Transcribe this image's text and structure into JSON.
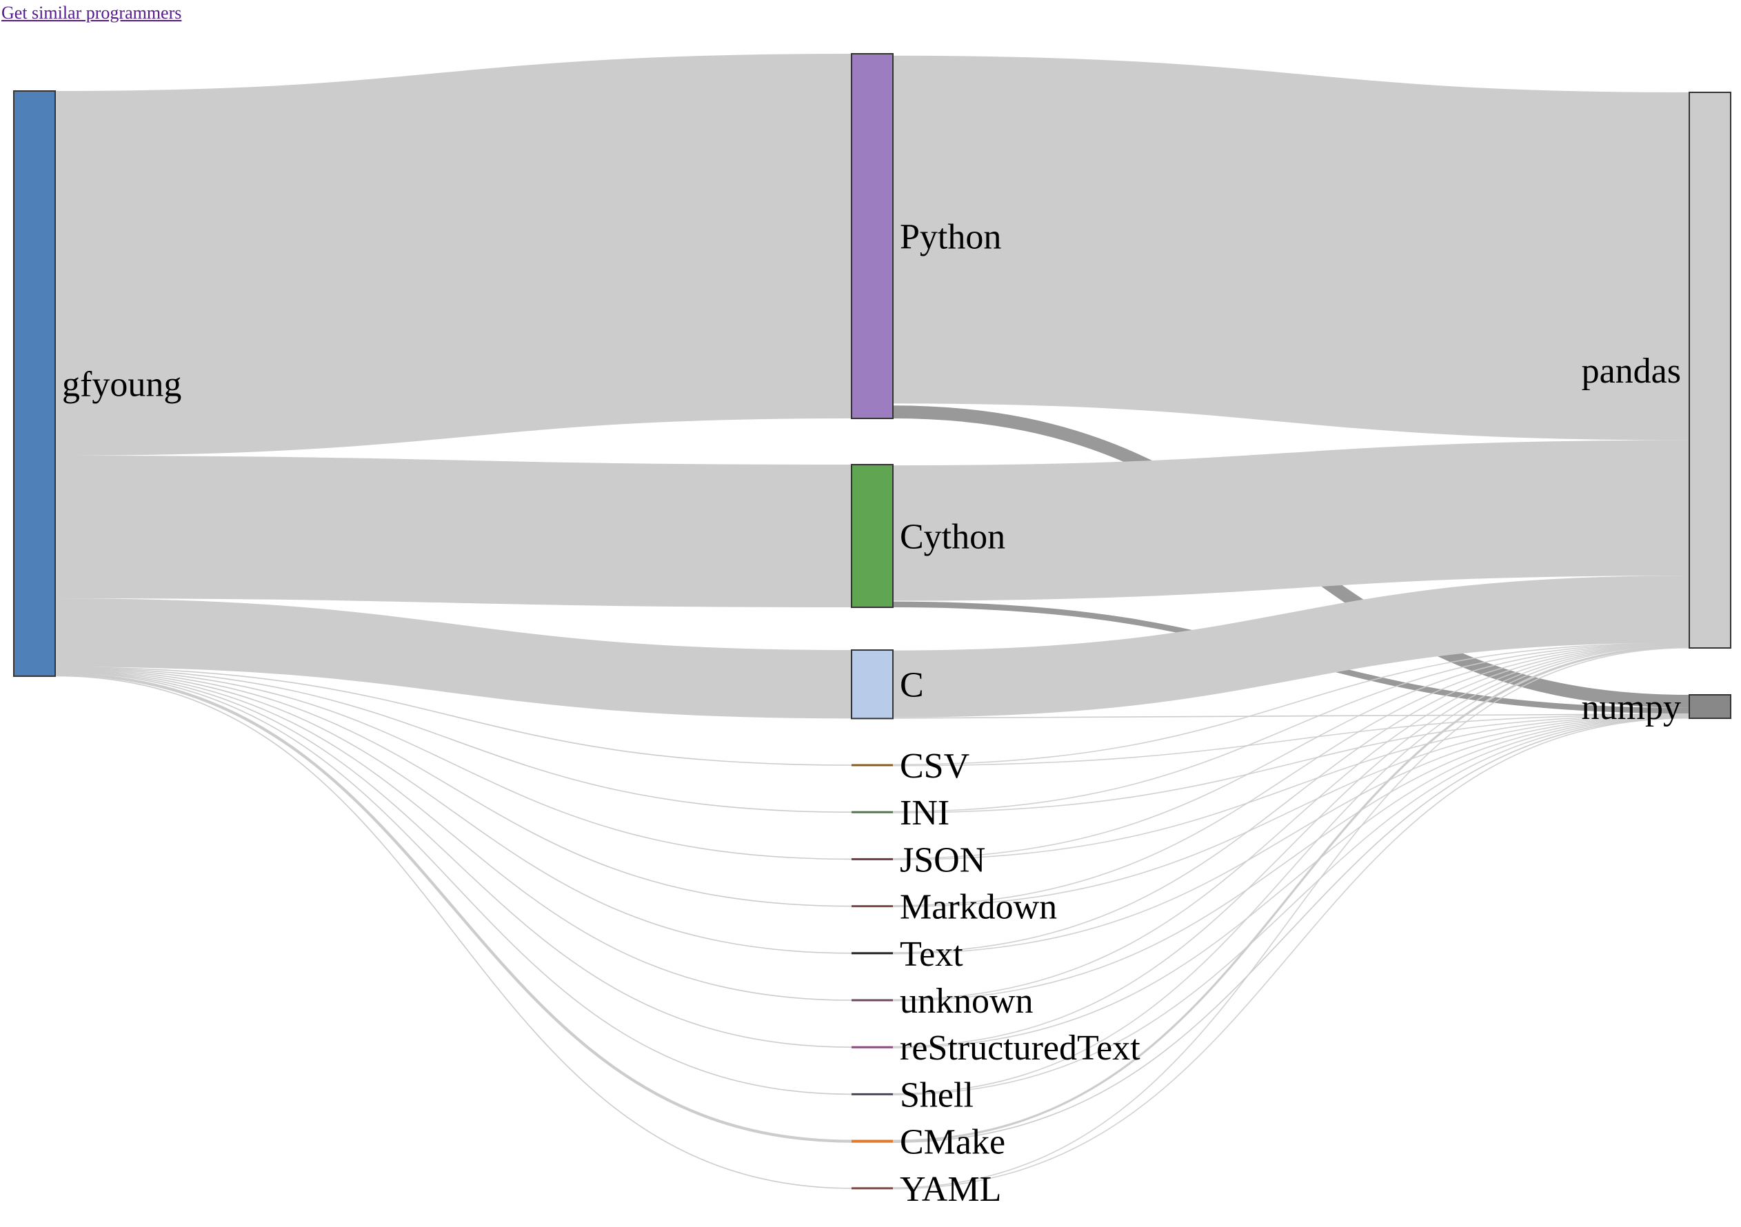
{
  "page": {
    "link_text": "Get similar programmers"
  },
  "sankey": {
    "columns": [
      [
        "gfyoung"
      ],
      [
        "Python",
        "Cython",
        "C",
        "CSV",
        "INI",
        "JSON",
        "Markdown",
        "Text",
        "unknown",
        "reStructuredText",
        "Shell",
        "CMake",
        "YAML"
      ],
      [
        "pandas",
        "numpy"
      ]
    ],
    "nodes": [
      {
        "id": "gfyoung",
        "color": "#4f81b8"
      },
      {
        "id": "Python",
        "color": "#9b7dc0"
      },
      {
        "id": "Cython",
        "color": "#60a552"
      },
      {
        "id": "C",
        "color": "#b8cce9"
      },
      {
        "id": "CSV",
        "color": "#8a5b1e"
      },
      {
        "id": "INI",
        "color": "#4e7a4a"
      },
      {
        "id": "JSON",
        "color": "#6e3a44"
      },
      {
        "id": "Markdown",
        "color": "#7a4a44"
      },
      {
        "id": "Text",
        "color": "#222222"
      },
      {
        "id": "unknown",
        "color": "#6e4a5e"
      },
      {
        "id": "reStructuredText",
        "color": "#8a4a7a"
      },
      {
        "id": "Shell",
        "color": "#4a4a5a"
      },
      {
        "id": "CMake",
        "color": "#e07a2f"
      },
      {
        "id": "YAML",
        "color": "#7a4a44"
      },
      {
        "id": "pandas",
        "color": "#cccccc"
      },
      {
        "id": "numpy",
        "color": "#888888"
      }
    ],
    "links": [
      {
        "source": "gfyoung",
        "target": "Python",
        "value": 506
      },
      {
        "source": "gfyoung",
        "target": "Cython",
        "value": 198
      },
      {
        "source": "gfyoung",
        "target": "C",
        "value": 95
      },
      {
        "source": "gfyoung",
        "target": "CSV",
        "value": 1
      },
      {
        "source": "gfyoung",
        "target": "INI",
        "value": 1
      },
      {
        "source": "gfyoung",
        "target": "JSON",
        "value": 1
      },
      {
        "source": "gfyoung",
        "target": "Markdown",
        "value": 1
      },
      {
        "source": "gfyoung",
        "target": "Text",
        "value": 1
      },
      {
        "source": "gfyoung",
        "target": "unknown",
        "value": 1
      },
      {
        "source": "gfyoung",
        "target": "reStructuredText",
        "value": 1
      },
      {
        "source": "gfyoung",
        "target": "Shell",
        "value": 1
      },
      {
        "source": "gfyoung",
        "target": "CMake",
        "value": 4
      },
      {
        "source": "gfyoung",
        "target": "YAML",
        "value": 1
      },
      {
        "source": "Python",
        "target": "pandas",
        "value": 488
      },
      {
        "source": "Python",
        "target": "numpy",
        "value": 18
      },
      {
        "source": "Cython",
        "target": "pandas",
        "value": 190
      },
      {
        "source": "Cython",
        "target": "numpy",
        "value": 8
      },
      {
        "source": "C",
        "target": "pandas",
        "value": 94
      },
      {
        "source": "C",
        "target": "numpy",
        "value": 1
      },
      {
        "source": "CSV",
        "target": "pandas",
        "value": 0.5
      },
      {
        "source": "CSV",
        "target": "numpy",
        "value": 0.5
      },
      {
        "source": "INI",
        "target": "pandas",
        "value": 0.5
      },
      {
        "source": "INI",
        "target": "numpy",
        "value": 0.5
      },
      {
        "source": "JSON",
        "target": "pandas",
        "value": 0.5
      },
      {
        "source": "JSON",
        "target": "numpy",
        "value": 0.5
      },
      {
        "source": "Markdown",
        "target": "pandas",
        "value": 0.5
      },
      {
        "source": "Markdown",
        "target": "numpy",
        "value": 0.5
      },
      {
        "source": "Text",
        "target": "pandas",
        "value": 0.5
      },
      {
        "source": "Text",
        "target": "numpy",
        "value": 0.5
      },
      {
        "source": "unknown",
        "target": "pandas",
        "value": 0.5
      },
      {
        "source": "unknown",
        "target": "numpy",
        "value": 0.5
      },
      {
        "source": "reStructuredText",
        "target": "pandas",
        "value": 0.5
      },
      {
        "source": "reStructuredText",
        "target": "numpy",
        "value": 0.5
      },
      {
        "source": "Shell",
        "target": "pandas",
        "value": 0.5
      },
      {
        "source": "Shell",
        "target": "numpy",
        "value": 0.5
      },
      {
        "source": "CMake",
        "target": "pandas",
        "value": 3
      },
      {
        "source": "CMake",
        "target": "numpy",
        "value": 1
      },
      {
        "source": "YAML",
        "target": "pandas",
        "value": 0.5
      },
      {
        "source": "YAML",
        "target": "numpy",
        "value": 0.5
      }
    ]
  }
}
